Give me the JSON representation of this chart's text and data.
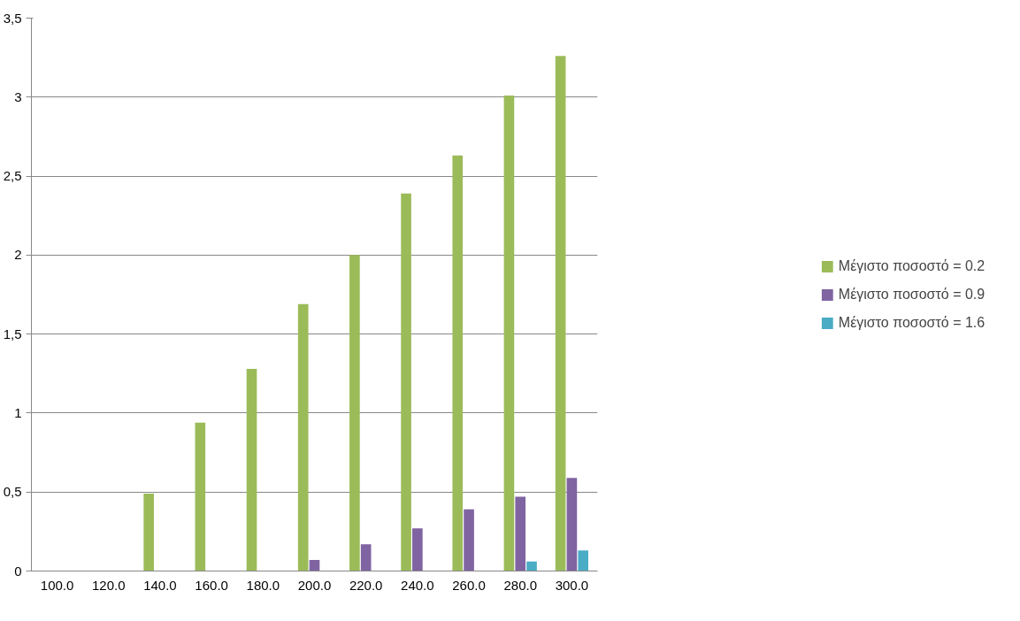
{
  "chart_data": {
    "type": "bar",
    "categories": [
      "100.0",
      "120.0",
      "140.0",
      "160.0",
      "180.0",
      "200.0",
      "220.0",
      "240.0",
      "260.0",
      "280.0",
      "300.0"
    ],
    "series": [
      {
        "name": "Μέγιστο ποσοστό = 0.2",
        "color": "#9bbb59",
        "values": [
          0,
          0,
          0.49,
          0.94,
          1.28,
          1.69,
          2.0,
          2.39,
          2.63,
          3.01,
          3.26
        ]
      },
      {
        "name": "Μέγιστο ποσοστό = 0.9",
        "color": "#8064a2",
        "values": [
          0,
          0,
          0,
          0,
          0,
          0.07,
          0.17,
          0.27,
          0.39,
          0.47,
          0.59
        ]
      },
      {
        "name": "Μέγιστο ποσοστό = 1.6",
        "color": "#4bacc6",
        "values": [
          0,
          0,
          0,
          0,
          0,
          0,
          0,
          0,
          0,
          0.06,
          0.13
        ]
      }
    ],
    "ylim": [
      0,
      3.5
    ],
    "yticks": [
      0,
      {
        "value": 0.5,
        "label": "0,5"
      },
      1,
      {
        "value": 1.5,
        "label": "1,5"
      },
      2,
      {
        "value": 2.5,
        "label": "2,5"
      },
      3,
      {
        "value": 3.5,
        "label": "3,5"
      }
    ],
    "grid": "y",
    "legend": "right"
  }
}
